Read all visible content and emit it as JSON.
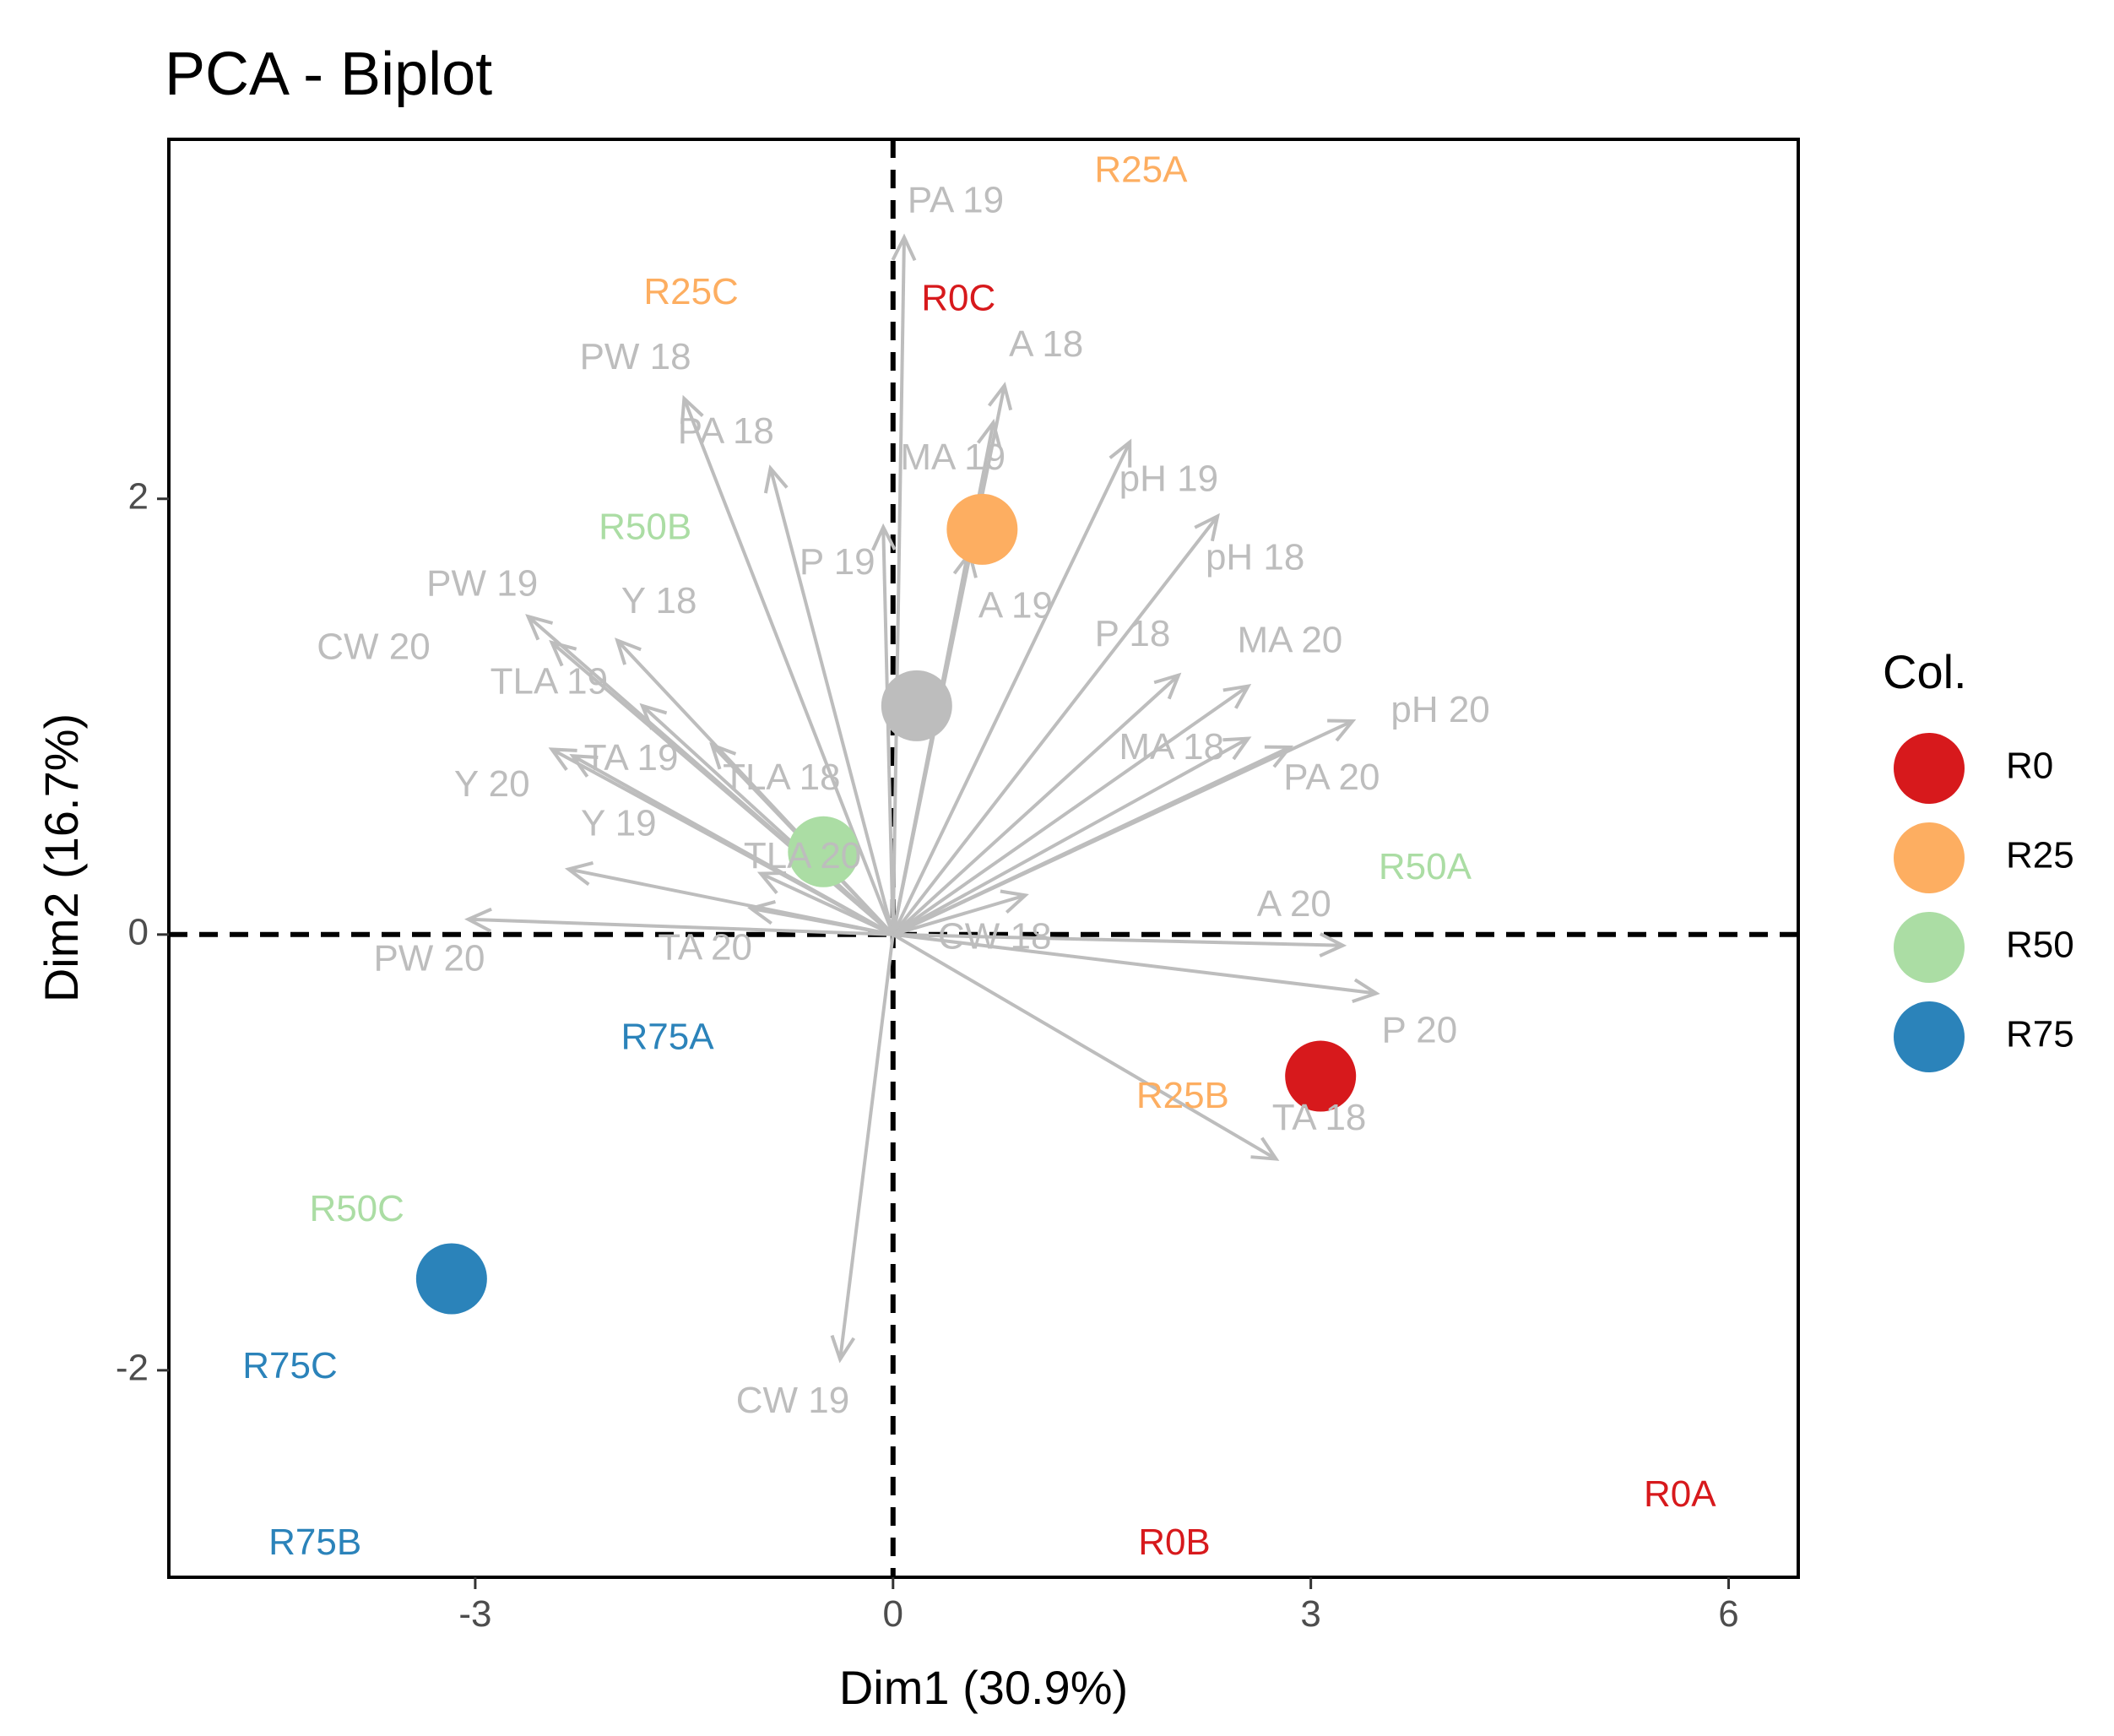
{
  "chart_data": {
    "type": "scatter",
    "subtype": "pca-biplot",
    "title": "PCA - Biplot",
    "xlabel": "Dim1 (30.9%)",
    "ylabel": "Dim2 (16.7%)",
    "xlim": [
      -5.2,
      6.5
    ],
    "ylim": [
      -2.95,
      3.65
    ],
    "x_ticks": [
      -3,
      0,
      3,
      6
    ],
    "y_ticks": [
      -2,
      0,
      2
    ],
    "grid": false,
    "zero_lines": "dashed",
    "legend": {
      "title": "Col.",
      "position": "right",
      "items": [
        {
          "name": "R0",
          "color": "#d7191c"
        },
        {
          "name": "R25",
          "color": "#fdae61"
        },
        {
          "name": "R50",
          "color": "#abdda4"
        },
        {
          "name": "R75",
          "color": "#2b83ba"
        }
      ]
    },
    "variable_color": "#bdbdbd",
    "variables": [
      {
        "name": "PA 19",
        "x": 0.08,
        "y": 3.2,
        "lx": 0.45,
        "ly": 3.36
      },
      {
        "name": "A 18",
        "x": 0.8,
        "y": 2.52,
        "lx": 1.1,
        "ly": 2.7
      },
      {
        "name": "MA 19",
        "x": 0.72,
        "y": 2.35,
        "lx": 0.43,
        "ly": 2.18
      },
      {
        "name": "PW 18",
        "x": -1.5,
        "y": 2.46,
        "lx": -1.85,
        "ly": 2.64
      },
      {
        "name": "PA 18",
        "x": -0.88,
        "y": 2.14,
        "lx": -1.2,
        "ly": 2.3
      },
      {
        "name": "pH 19",
        "x": 1.7,
        "y": 2.26,
        "lx": 1.98,
        "ly": 2.08
      },
      {
        "name": "pH 18",
        "x": 2.33,
        "y": 1.92,
        "lx": 2.6,
        "ly": 1.72
      },
      {
        "name": "P 19",
        "x": -0.07,
        "y": 1.87,
        "lx": -0.4,
        "ly": 1.7
      },
      {
        "name": "A 19",
        "x": 0.55,
        "y": 1.75,
        "lx": 0.88,
        "ly": 1.5
      },
      {
        "name": "PW 19",
        "x": -2.62,
        "y": 1.46,
        "lx": -2.95,
        "ly": 1.6
      },
      {
        "name": "Y 18",
        "x": -1.98,
        "y": 1.35,
        "lx": -1.68,
        "ly": 1.52
      },
      {
        "name": "CW 20",
        "x": -2.45,
        "y": 1.34,
        "lx": -3.73,
        "ly": 1.31
      },
      {
        "name": "P 18",
        "x": 2.05,
        "y": 1.19,
        "lx": 1.72,
        "ly": 1.37
      },
      {
        "name": "MA 20",
        "x": 2.55,
        "y": 1.14,
        "lx": 2.85,
        "ly": 1.34
      },
      {
        "name": "TLA 19",
        "x": -1.8,
        "y": 1.05,
        "lx": -2.47,
        "ly": 1.15
      },
      {
        "name": "pH 20",
        "x": 3.3,
        "y": 0.98,
        "lx": 3.93,
        "ly": 1.02
      },
      {
        "name": "MA 18",
        "x": 2.55,
        "y": 0.9,
        "lx": 2.0,
        "ly": 0.85
      },
      {
        "name": "TA 19",
        "x": -2.45,
        "y": 0.85,
        "lx": -1.88,
        "ly": 0.8
      },
      {
        "name": "TLA 18",
        "x": -1.3,
        "y": 0.87,
        "lx": -0.8,
        "ly": 0.71
      },
      {
        "name": "PA 20",
        "x": 2.85,
        "y": 0.86,
        "lx": 3.15,
        "ly": 0.71
      },
      {
        "name": "Y 20",
        "x": -2.3,
        "y": 0.82,
        "lx": -2.88,
        "ly": 0.68
      },
      {
        "name": "Y 19",
        "x": -2.33,
        "y": 0.3,
        "lx": -1.97,
        "ly": 0.5
      },
      {
        "name": "TLA 20",
        "x": -0.95,
        "y": 0.28,
        "lx": -0.65,
        "ly": 0.35
      },
      {
        "name": "A 20",
        "x": 3.23,
        "y": -0.05,
        "lx": 2.88,
        "ly": 0.13
      },
      {
        "name": "P 20",
        "x": 3.47,
        "y": -0.27,
        "lx": 3.78,
        "ly": -0.45
      },
      {
        "name": "CW 18",
        "x": 0.95,
        "y": 0.18,
        "lx": 0.73,
        "ly": -0.02
      },
      {
        "name": "TA 20",
        "x": -1.02,
        "y": 0.12,
        "lx": -1.35,
        "ly": -0.07
      },
      {
        "name": "PW 20",
        "x": -3.05,
        "y": 0.07,
        "lx": -3.33,
        "ly": -0.12
      },
      {
        "name": "TA 18",
        "x": 2.75,
        "y": -1.03,
        "lx": 3.06,
        "ly": -0.85
      },
      {
        "name": "CW 19",
        "x": -0.38,
        "y": -1.95,
        "lx": -0.72,
        "ly": -2.15
      }
    ],
    "individuals": [
      {
        "name": "R25A",
        "group": "R25",
        "x": 1.78,
        "y": 3.5
      },
      {
        "name": "R0C",
        "group": "R0",
        "x": 0.47,
        "y": 2.91
      },
      {
        "name": "R25C",
        "group": "R25",
        "x": -1.45,
        "y": 2.94
      },
      {
        "name": "R50B",
        "group": "R50",
        "x": -1.78,
        "y": 1.86
      },
      {
        "name": "R50A",
        "group": "R50",
        "x": 3.82,
        "y": 0.3
      },
      {
        "name": "R75A",
        "group": "R75",
        "x": -1.62,
        "y": -0.48
      },
      {
        "name": "R25B",
        "group": "R25",
        "x": 2.08,
        "y": -0.75
      },
      {
        "name": "R50C",
        "group": "R50",
        "x": -3.85,
        "y": -1.27
      },
      {
        "name": "R75C",
        "group": "R75",
        "x": -4.33,
        "y": -1.99
      },
      {
        "name": "R0A",
        "group": "R0",
        "x": 5.65,
        "y": -2.58
      },
      {
        "name": "R0B",
        "group": "R0",
        "x": 2.02,
        "y": -2.8
      },
      {
        "name": "R75B",
        "group": "R75",
        "x": -4.15,
        "y": -2.8
      }
    ],
    "centroids": [
      {
        "group": "R0",
        "x": 3.07,
        "y": -0.65
      },
      {
        "group": "R25",
        "x": 0.64,
        "y": 1.86
      },
      {
        "group": "R50",
        "x": -0.5,
        "y": 0.38
      },
      {
        "group": "R75",
        "x": -3.17,
        "y": -1.58
      },
      {
        "group": "origin",
        "x": 0.17,
        "y": 1.05,
        "color": "#bdbdbd"
      }
    ]
  }
}
